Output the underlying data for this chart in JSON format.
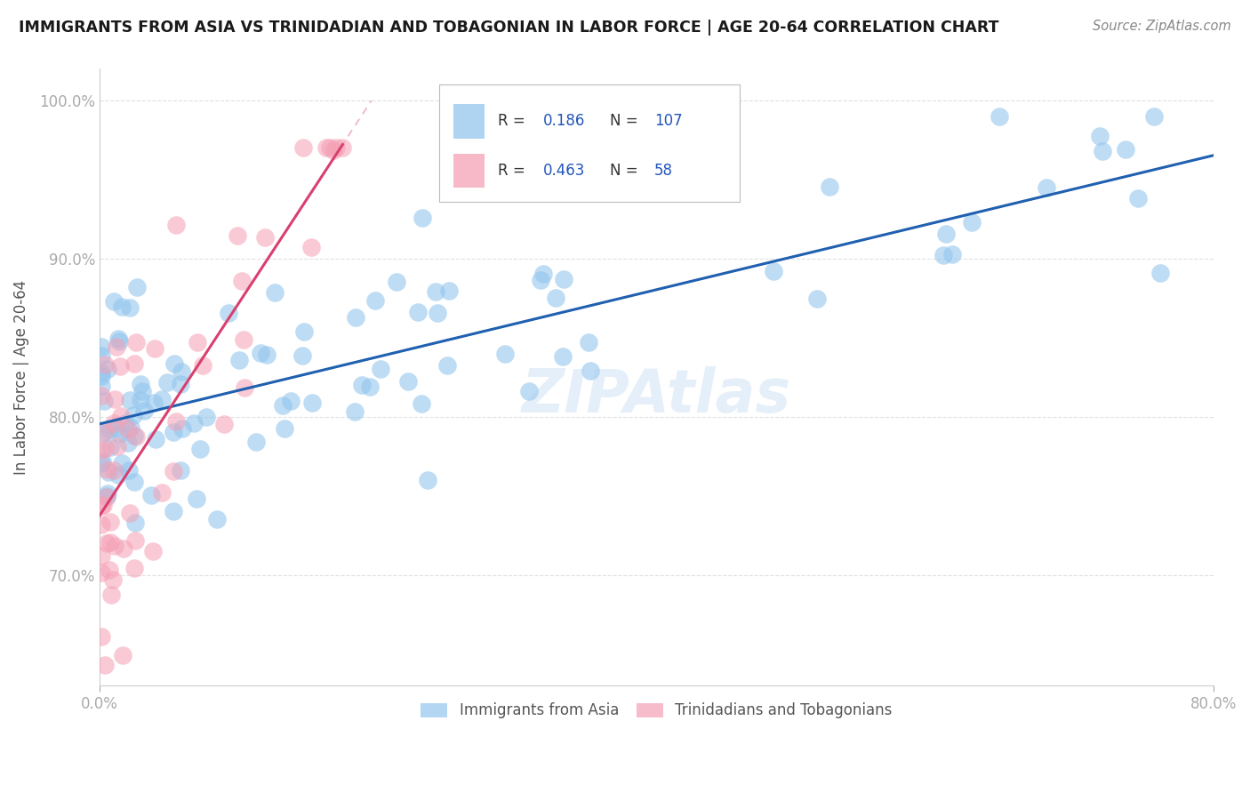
{
  "title": "IMMIGRANTS FROM ASIA VS TRINIDADIAN AND TOBAGONIAN IN LABOR FORCE | AGE 20-64 CORRELATION CHART",
  "source": "Source: ZipAtlas.com",
  "ylabel": "In Labor Force | Age 20-64",
  "xlim": [
    0.0,
    0.8
  ],
  "ylim": [
    0.63,
    1.02
  ],
  "yticks": [
    0.7,
    0.8,
    0.9,
    1.0
  ],
  "yticklabels": [
    "70.0%",
    "80.0%",
    "90.0%",
    "100.0%"
  ],
  "blue_color": "#93C6EE",
  "pink_color": "#F5A0B5",
  "blue_line_color": "#2060B0",
  "pink_line_color": "#D94070",
  "pink_dash_color": "#F0B0C0",
  "r_blue": 0.186,
  "n_blue": 107,
  "r_pink": 0.463,
  "n_pink": 58,
  "legend1": "Immigrants from Asia",
  "legend2": "Trinidadians and Tobagonians",
  "watermark": "ZIPAtlas",
  "background_color": "#ffffff",
  "grid_color": "#e0e0e0",
  "seed_blue": 12,
  "seed_pink": 99
}
